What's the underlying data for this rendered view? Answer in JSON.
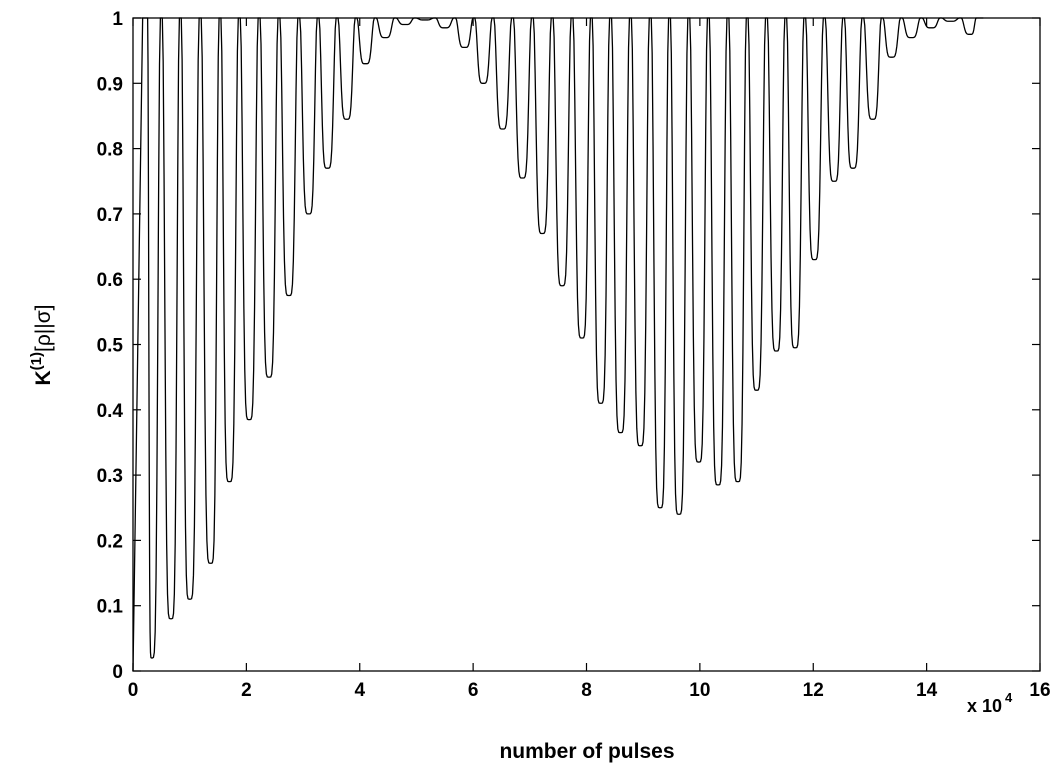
{
  "chart_data": {
    "type": "line",
    "title": "",
    "xlabel": "number of pulses",
    "ylabel": "K",
    "ylabel_sup": "(1)",
    "ylabel_rest": "[ρ||σ]",
    "x_multiplier": "x 10",
    "x_multiplier_exp": "4",
    "xlim": [
      0,
      16
    ],
    "ylim": [
      0,
      1
    ],
    "x_ticks": [
      "0",
      "2",
      "4",
      "6",
      "8",
      "10",
      "12",
      "14",
      "16"
    ],
    "y_ticks": [
      "0",
      "0.1",
      "0.2",
      "0.3",
      "0.4",
      "0.5",
      "0.6",
      "0.7",
      "0.8",
      "0.9",
      "1"
    ],
    "grid": false,
    "legend": "none",
    "line_color": "#000000",
    "x_units_note": "x values in units of 10^4 pulses",
    "series": [
      {
        "minima": [
          [
            0.33,
            0.02
          ],
          [
            0.67,
            0.08
          ],
          [
            1.0,
            0.11
          ],
          [
            1.37,
            0.165
          ],
          [
            1.7,
            0.29
          ],
          [
            2.05,
            0.385
          ],
          [
            2.4,
            0.45
          ],
          [
            2.75,
            0.575
          ],
          [
            3.1,
            0.7
          ],
          [
            3.43,
            0.77
          ],
          [
            3.77,
            0.845
          ],
          [
            4.1,
            0.93
          ],
          [
            4.45,
            0.97
          ],
          [
            4.8,
            0.99
          ],
          [
            5.15,
            0.997
          ],
          [
            5.5,
            0.985
          ],
          [
            5.85,
            0.955
          ],
          [
            6.18,
            0.9
          ],
          [
            6.52,
            0.83
          ],
          [
            6.87,
            0.755
          ],
          [
            7.22,
            0.67
          ],
          [
            7.57,
            0.59
          ],
          [
            7.92,
            0.51
          ],
          [
            8.25,
            0.41
          ],
          [
            8.6,
            0.365
          ],
          [
            8.95,
            0.345
          ],
          [
            9.3,
            0.25
          ],
          [
            9.63,
            0.24
          ],
          [
            9.98,
            0.32
          ],
          [
            10.32,
            0.285
          ],
          [
            10.67,
            0.29
          ],
          [
            11.0,
            0.43
          ],
          [
            11.35,
            0.49
          ],
          [
            11.68,
            0.495
          ],
          [
            12.02,
            0.63
          ],
          [
            12.37,
            0.75
          ],
          [
            12.7,
            0.77
          ],
          [
            13.05,
            0.845
          ],
          [
            13.38,
            0.94
          ],
          [
            13.73,
            0.97
          ],
          [
            14.08,
            0.985
          ],
          [
            14.42,
            0.995
          ],
          [
            14.77,
            0.975
          ]
        ],
        "x_end": 15.0,
        "y_end": 1.0
      }
    ]
  }
}
